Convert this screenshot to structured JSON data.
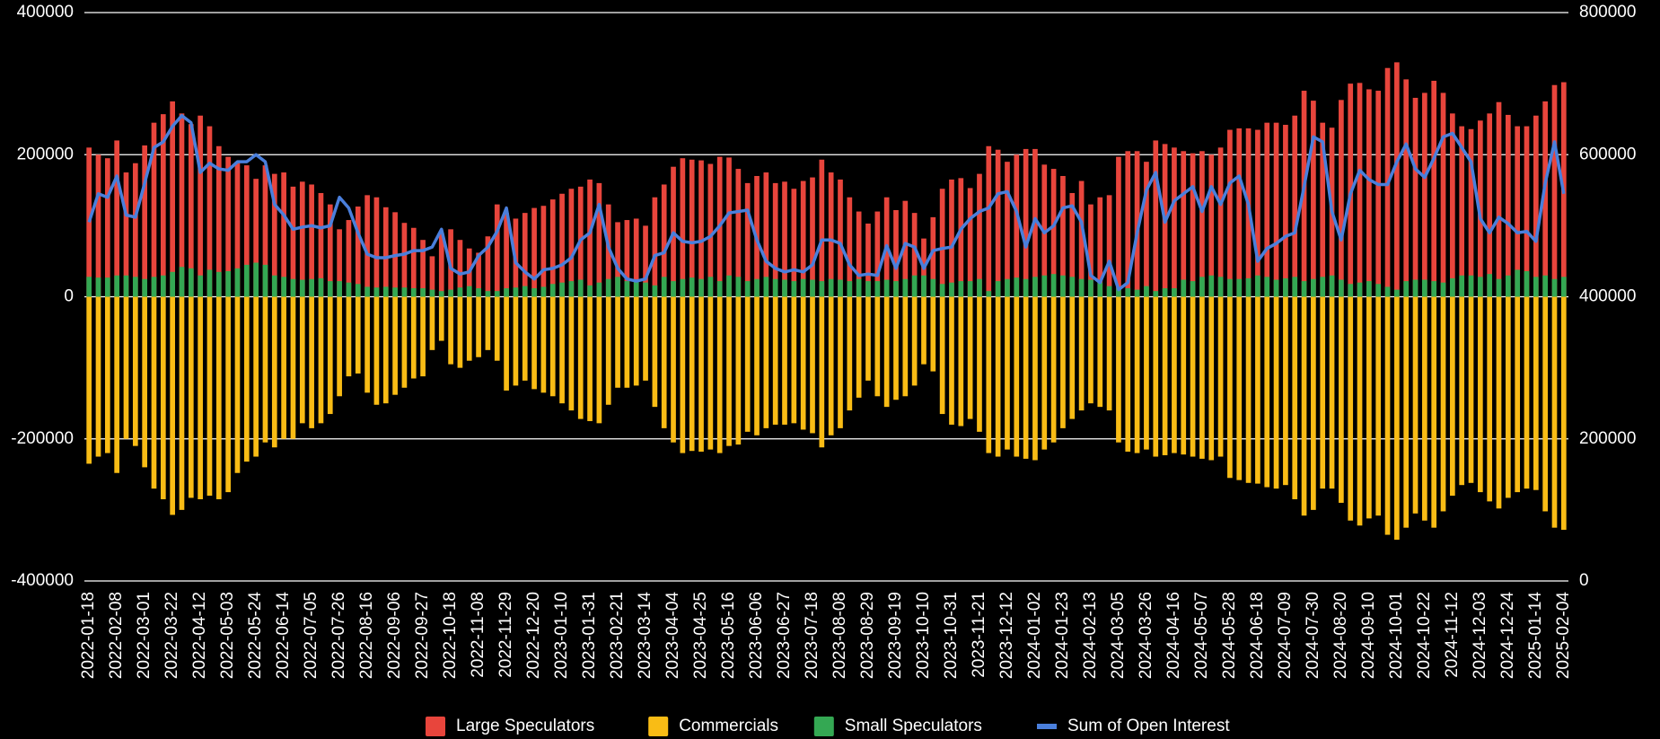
{
  "chart_data": {
    "type": "bar",
    "categories": [
      "2022-01-18",
      null,
      null,
      "2022-02-08",
      null,
      null,
      "2022-03-01",
      null,
      null,
      "2022-03-22",
      null,
      null,
      "2022-04-12",
      null,
      null,
      "2022-05-03",
      null,
      null,
      "2022-05-24",
      null,
      null,
      "2022-06-14",
      null,
      null,
      "2022-07-05",
      null,
      null,
      "2022-07-26",
      null,
      null,
      "2022-08-16",
      null,
      null,
      "2022-09-06",
      null,
      null,
      "2022-09-27",
      null,
      null,
      "2022-10-18",
      null,
      null,
      "2022-11-08",
      null,
      null,
      "2022-11-29",
      null,
      null,
      "2022-12-20",
      null,
      null,
      "2023-01-10",
      null,
      null,
      "2023-01-31",
      null,
      null,
      "2023-02-21",
      null,
      null,
      "2023-03-14",
      null,
      null,
      "2023-04-04",
      null,
      null,
      "2023-04-25",
      null,
      null,
      "2023-05-16",
      null,
      null,
      "2023-06-06",
      null,
      null,
      "2023-06-27",
      null,
      null,
      "2023-07-18",
      null,
      null,
      "2023-08-08",
      null,
      null,
      "2023-08-29",
      null,
      null,
      "2023-09-19",
      null,
      null,
      "2023-10-10",
      null,
      null,
      "2023-10-31",
      null,
      null,
      "2023-11-21",
      null,
      null,
      "2023-12-12",
      null,
      null,
      "2024-01-02",
      null,
      null,
      "2024-01-23",
      null,
      null,
      "2024-02-13",
      null,
      null,
      "2024-03-05",
      null,
      null,
      "2024-03-26",
      null,
      null,
      "2024-04-16",
      null,
      null,
      "2024-05-07",
      null,
      null,
      "2024-05-28",
      null,
      null,
      "2024-06-18",
      null,
      null,
      "2024-07-09",
      null,
      null,
      "2024-07-30",
      null,
      null,
      "2024-08-20",
      null,
      null,
      "2024-09-10",
      null,
      null,
      "2024-10-01",
      null,
      null,
      "2024-10-22",
      null,
      null,
      "2024-11-12",
      null,
      null,
      "2024-12-03",
      null,
      null,
      "2024-12-24",
      null,
      null,
      "2025-01-14",
      null,
      null,
      "2025-02-04"
    ],
    "series": [
      {
        "name": "Large Speculators",
        "color": "#e8453c",
        "kind": "bar",
        "values": [
          210000,
          200000,
          195000,
          220000,
          175000,
          188000,
          213000,
          245000,
          257000,
          275000,
          258000,
          243000,
          255000,
          240000,
          212000,
          197000,
          190000,
          185000,
          166000,
          185000,
          173000,
          175000,
          155000,
          162000,
          158000,
          146000,
          130000,
          95000,
          108000,
          127000,
          143000,
          140000,
          126000,
          119000,
          104000,
          97000,
          80000,
          57000,
          90000,
          95000,
          80000,
          68000,
          62000,
          85000,
          130000,
          118000,
          110000,
          118000,
          125000,
          128000,
          137000,
          145000,
          152000,
          155000,
          165000,
          160000,
          130000,
          105000,
          108000,
          110000,
          100000,
          140000,
          158000,
          183000,
          195000,
          193000,
          192000,
          187000,
          197000,
          196000,
          180000,
          160000,
          170000,
          175000,
          160000,
          162000,
          152000,
          163000,
          168000,
          193000,
          175000,
          165000,
          140000,
          120000,
          103000,
          120000,
          140000,
          122000,
          135000,
          118000,
          82000,
          112000,
          152000,
          165000,
          167000,
          153000,
          173000,
          212000,
          207000,
          190000,
          200000,
          208000,
          208000,
          186000,
          180000,
          170000,
          146000,
          163000,
          130000,
          140000,
          143000,
          197000,
          205000,
          205000,
          190000,
          220000,
          215000,
          210000,
          205000,
          202000,
          205000,
          200000,
          210000,
          235000,
          237000,
          237000,
          235000,
          245000,
          245000,
          242000,
          255000,
          290000,
          276000,
          245000,
          238000,
          277000,
          300000,
          301000,
          292000,
          290000,
          322000,
          330000,
          306000,
          280000,
          287000,
          304000,
          287000,
          258000,
          240000,
          236000,
          248000,
          258000,
          274000,
          256000,
          240000,
          240000,
          255000,
          275000,
          298000,
          302000
        ]
      },
      {
        "name": "Commercials",
        "color": "#f9bc15",
        "kind": "bar",
        "values": [
          -235000,
          -225000,
          -220000,
          -248000,
          -200000,
          -210000,
          -240000,
          -270000,
          -285000,
          -307000,
          -300000,
          -283000,
          -285000,
          -280000,
          -285000,
          -275000,
          -248000,
          -232000,
          -225000,
          -205000,
          -212000,
          -200000,
          -200000,
          -178000,
          -185000,
          -178000,
          -165000,
          -140000,
          -112000,
          -108000,
          -135000,
          -152000,
          -150000,
          -138000,
          -128000,
          -115000,
          -112000,
          -75000,
          -62000,
          -95000,
          -100000,
          -90000,
          -85000,
          -75000,
          -90000,
          -132000,
          -125000,
          -118000,
          -130000,
          -135000,
          -140000,
          -150000,
          -160000,
          -172000,
          -175000,
          -178000,
          -152000,
          -128000,
          -128000,
          -125000,
          -118000,
          -155000,
          -185000,
          -205000,
          -220000,
          -217000,
          -218000,
          -215000,
          -220000,
          -210000,
          -208000,
          -190000,
          -195000,
          -185000,
          -180000,
          -180000,
          -178000,
          -187000,
          -192000,
          -212000,
          -195000,
          -185000,
          -160000,
          -142000,
          -118000,
          -140000,
          -155000,
          -145000,
          -140000,
          -125000,
          -95000,
          -105000,
          -165000,
          -180000,
          -182000,
          -172000,
          -190000,
          -220000,
          -225000,
          -215000,
          -225000,
          -228000,
          -230000,
          -215000,
          -205000,
          -185000,
          -172000,
          -160000,
          -150000,
          -155000,
          -160000,
          -205000,
          -218000,
          -220000,
          -215000,
          -225000,
          -223000,
          -220000,
          -222000,
          -225000,
          -228000,
          -230000,
          -225000,
          -255000,
          -258000,
          -262000,
          -263000,
          -268000,
          -270000,
          -265000,
          -285000,
          -308000,
          -300000,
          -270000,
          -270000,
          -290000,
          -315000,
          -322000,
          -312000,
          -308000,
          -335000,
          -342000,
          -325000,
          -305000,
          -315000,
          -325000,
          -302000,
          -280000,
          -265000,
          -262000,
          -275000,
          -288000,
          -298000,
          -283000,
          -275000,
          -270000,
          -272000,
          -302000,
          -325000,
          -328000
        ]
      },
      {
        "name": "Small Speculators",
        "color": "#34a853",
        "kind": "bar",
        "values": [
          28000,
          27000,
          27000,
          30000,
          30000,
          28000,
          25000,
          28000,
          30000,
          35000,
          42000,
          40000,
          30000,
          38000,
          35000,
          36000,
          40000,
          45000,
          48000,
          45000,
          30000,
          28000,
          25000,
          24000,
          25000,
          26000,
          22000,
          22000,
          20000,
          18000,
          14000,
          13000,
          14000,
          13000,
          13000,
          12000,
          12000,
          10000,
          8000,
          10000,
          13000,
          15000,
          12000,
          8000,
          8000,
          12000,
          13000,
          15000,
          12000,
          14000,
          18000,
          20000,
          22000,
          24000,
          16000,
          20000,
          25000,
          28000,
          22000,
          22000,
          20000,
          16000,
          28000,
          22000,
          25000,
          27000,
          25000,
          28000,
          22000,
          30000,
          28000,
          22000,
          25000,
          28000,
          25000,
          24000,
          22000,
          25000,
          24000,
          22000,
          25000,
          24000,
          22000,
          25000,
          22000,
          22000,
          24000,
          22000,
          25000,
          30000,
          30000,
          25000,
          18000,
          20000,
          22000,
          22000,
          25000,
          8000,
          22000,
          25000,
          27000,
          25000,
          28000,
          30000,
          32000,
          30000,
          28000,
          25000,
          24000,
          20000,
          15000,
          12000,
          12000,
          10000,
          15000,
          8000,
          12000,
          12000,
          24000,
          22000,
          28000,
          30000,
          28000,
          25000,
          25000,
          26000,
          30000,
          28000,
          24000,
          26000,
          28000,
          22000,
          25000,
          28000,
          30000,
          24000,
          18000,
          20000,
          22000,
          18000,
          14000,
          10000,
          22000,
          24000,
          24000,
          22000,
          20000,
          26000,
          30000,
          30000,
          28000,
          32000,
          25000,
          30000,
          38000,
          36000,
          28000,
          30000,
          25000,
          28000
        ]
      },
      {
        "name": "Sum of Open Interest",
        "color": "#4a7fdc",
        "kind": "line",
        "axis": "y2",
        "values": [
          505000,
          545000,
          540000,
          570000,
          515000,
          512000,
          560000,
          610000,
          618000,
          640000,
          655000,
          645000,
          575000,
          588000,
          580000,
          578000,
          590000,
          590000,
          600000,
          590000,
          530000,
          515000,
          495000,
          498000,
          500000,
          497000,
          500000,
          540000,
          525000,
          490000,
          460000,
          455000,
          455000,
          458000,
          460000,
          465000,
          465000,
          470000,
          495000,
          440000,
          432000,
          435000,
          458000,
          470000,
          492000,
          525000,
          448000,
          435000,
          425000,
          438000,
          440000,
          445000,
          455000,
          480000,
          490000,
          530000,
          470000,
          440000,
          425000,
          422000,
          425000,
          458000,
          462000,
          490000,
          478000,
          476000,
          478000,
          485000,
          500000,
          518000,
          520000,
          522000,
          480000,
          450000,
          440000,
          435000,
          438000,
          435000,
          445000,
          480000,
          480000,
          475000,
          445000,
          430000,
          432000,
          430000,
          472000,
          440000,
          475000,
          470000,
          440000,
          465000,
          468000,
          470000,
          495000,
          510000,
          520000,
          525000,
          545000,
          548000,
          520000,
          470000,
          510000,
          490000,
          500000,
          525000,
          528000,
          505000,
          430000,
          420000,
          450000,
          410000,
          420000,
          490000,
          550000,
          575000,
          505000,
          535000,
          545000,
          555000,
          520000,
          555000,
          530000,
          560000,
          570000,
          530000,
          450000,
          468000,
          475000,
          485000,
          490000,
          555000,
          625000,
          618000,
          520000,
          480000,
          545000,
          578000,
          565000,
          558000,
          558000,
          590000,
          615000,
          580000,
          568000,
          595000,
          625000,
          630000,
          610000,
          590000,
          510000,
          490000,
          512000,
          503000,
          490000,
          492000,
          478000,
          560000,
          618000,
          545000
        ]
      }
    ],
    "ylim": [
      -400000,
      400000
    ],
    "yticks": [
      -400000,
      -200000,
      0,
      200000,
      400000
    ],
    "y2lim": [
      0,
      800000
    ],
    "y2ticks": [
      0,
      200000,
      400000,
      600000,
      800000
    ],
    "grid": true,
    "legend": "bottom"
  }
}
